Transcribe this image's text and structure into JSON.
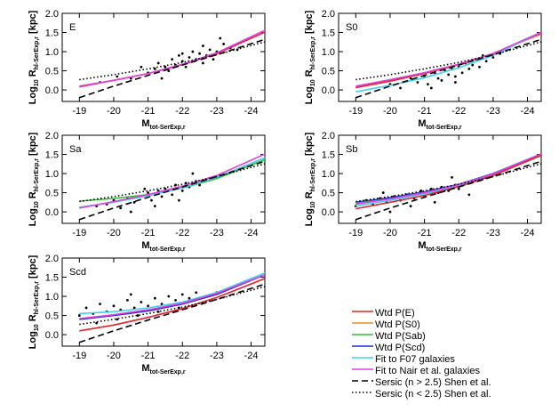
{
  "chart_data": [
    {
      "type": "scatter",
      "label": "E",
      "xlabel": [
        "M",
        "tot-SerExp,r"
      ],
      "ylabel": [
        "Log",
        "10",
        " R",
        "hl-SerExp,r",
        " [kpc]"
      ],
      "xlim": [
        -18.5,
        -24.4
      ],
      "ylim": [
        -0.3,
        2.0
      ],
      "xticks": [
        -19,
        -20,
        -21,
        -22,
        -23,
        -24
      ],
      "yticks": [
        {
          "value": 0,
          "label": "0.0"
        },
        {
          "value": 0.5,
          "label": "0.5"
        },
        {
          "value": 1,
          "label": "1.0"
        },
        {
          "value": 1.5,
          "label": "1.5"
        },
        {
          "value": 2,
          "label": "2.0"
        }
      ],
      "points": {
        "x": [
          -20.1,
          -20.5,
          -20.8,
          -21.0,
          -21.2,
          -21.3,
          -21.5,
          -21.6,
          -21.7,
          -21.8,
          -21.9,
          -22.0,
          -22.1,
          -22.2,
          -22.3,
          -22.4,
          -22.5,
          -22.6,
          -22.7,
          -22.8,
          -22.9,
          -23.0,
          -23.2,
          -23.4,
          -23.6,
          -19.6,
          -21.4,
          -22.0,
          -22.6,
          -23.1
        ],
        "y": [
          0.35,
          0.3,
          0.6,
          0.45,
          0.55,
          0.7,
          0.6,
          0.5,
          0.8,
          0.65,
          0.9,
          0.75,
          0.6,
          0.85,
          1.0,
          0.8,
          0.95,
          1.15,
          0.9,
          1.05,
          0.8,
          1.0,
          1.2,
          1.1,
          1.05,
          0.2,
          0.3,
          0.95,
          0.7,
          1.35
        ]
      },
      "x": [
        -19,
        -20,
        -21,
        -22,
        -23,
        -24.5
      ],
      "series": [
        {
          "color": "#e8202a",
          "dash": "solid",
          "values": [
            0.08,
            0.25,
            0.43,
            0.66,
            0.95,
            1.55
          ]
        },
        {
          "color": "#e040e0",
          "dash": "solid",
          "values": [
            0.1,
            0.25,
            0.43,
            0.67,
            0.97,
            1.6
          ]
        },
        {
          "color": "#000000",
          "dash": "dashed",
          "values": [
            -0.2,
            0.1,
            0.38,
            0.65,
            0.92,
            1.35
          ]
        },
        {
          "color": "#000000",
          "dash": "dotted",
          "values": [
            0.27,
            0.4,
            0.55,
            0.72,
            0.92,
            1.28
          ]
        }
      ]
    },
    {
      "type": "scatter",
      "label": "S0",
      "xlabel": [
        "M",
        "tot-SerExp,r"
      ],
      "ylabel": [
        "Log",
        "10",
        " R",
        "hl-SerExp,r",
        " [kpc]"
      ],
      "xlim": [
        -18.5,
        -24.4
      ],
      "ylim": [
        -0.3,
        2.0
      ],
      "xticks": [
        -19,
        -20,
        -21,
        -22,
        -23,
        -24
      ],
      "yticks": [
        {
          "value": 0,
          "label": "0.0"
        },
        {
          "value": 0.5,
          "label": "0.5"
        },
        {
          "value": 1,
          "label": "1.0"
        },
        {
          "value": 1.5,
          "label": "1.5"
        },
        {
          "value": 2,
          "label": "2.0"
        }
      ],
      "points": {
        "x": [
          -20.0,
          -20.3,
          -20.6,
          -20.8,
          -21.0,
          -21.1,
          -21.3,
          -21.4,
          -21.5,
          -21.6,
          -21.7,
          -21.8,
          -21.9,
          -22.0,
          -22.1,
          -22.2,
          -22.3,
          -22.4,
          -22.5,
          -22.6,
          -22.8,
          -23.0,
          -23.2,
          -21.2,
          -21.9,
          -22.7
        ],
        "y": [
          0.15,
          0.05,
          0.3,
          0.2,
          0.35,
          0.15,
          0.45,
          0.3,
          0.25,
          0.5,
          0.4,
          0.55,
          0.35,
          0.6,
          0.45,
          0.7,
          0.55,
          0.65,
          0.8,
          0.6,
          0.75,
          0.85,
          0.95,
          0.05,
          0.2,
          0.9
        ]
      },
      "x": [
        -19,
        -20,
        -21,
        -22,
        -23,
        -24.5
      ],
      "series": [
        {
          "color": "#f08a1c",
          "dash": "solid",
          "values": [
            0.08,
            0.25,
            0.45,
            0.67,
            0.95,
            1.5
          ]
        },
        {
          "color": "#e8202a",
          "dash": "solid",
          "values": [
            0.06,
            0.23,
            0.43,
            0.66,
            0.95,
            1.52
          ]
        },
        {
          "color": "#3fd0f0",
          "dash": "solid",
          "values": [
            -0.05,
            0.12,
            0.32,
            0.58,
            0.9,
            1.55
          ]
        },
        {
          "color": "#e040e0",
          "dash": "solid",
          "values": [
            0.1,
            0.27,
            0.45,
            0.67,
            0.95,
            1.55
          ]
        },
        {
          "color": "#000000",
          "dash": "dashed",
          "values": [
            -0.2,
            0.1,
            0.38,
            0.65,
            0.92,
            1.35
          ]
        },
        {
          "color": "#000000",
          "dash": "dotted",
          "values": [
            0.27,
            0.4,
            0.55,
            0.72,
            0.92,
            1.28
          ]
        }
      ]
    },
    {
      "type": "scatter",
      "label": "Sa",
      "xlabel": [
        "M",
        "tot-SerExp,r"
      ],
      "ylabel": [
        "Log",
        "10",
        " R",
        "hl-SerExp,r",
        " [kpc]"
      ],
      "xlim": [
        -18.5,
        -24.4
      ],
      "ylim": [
        -0.3,
        2.0
      ],
      "xticks": [
        -19,
        -20,
        -21,
        -22,
        -23,
        -24
      ],
      "yticks": [
        {
          "value": 0,
          "label": "0.0"
        },
        {
          "value": 0.5,
          "label": "0.5"
        },
        {
          "value": 1,
          "label": "1.0"
        },
        {
          "value": 1.5,
          "label": "1.5"
        },
        {
          "value": 2,
          "label": "2.0"
        }
      ],
      "points": {
        "x": [
          -19.5,
          -19.8,
          -20.0,
          -20.2,
          -20.4,
          -20.6,
          -20.8,
          -21.0,
          -21.1,
          -21.3,
          -21.4,
          -21.5,
          -21.7,
          -21.8,
          -22.0,
          -22.1,
          -22.2,
          -22.4,
          -22.5,
          -22.7,
          -22.9,
          -20.5,
          -21.2,
          -21.9,
          -22.3,
          -20.9
        ],
        "y": [
          0.15,
          0.2,
          0.3,
          0.1,
          0.35,
          0.25,
          0.4,
          0.5,
          0.3,
          0.55,
          0.4,
          0.6,
          0.45,
          0.7,
          0.55,
          0.75,
          0.65,
          0.8,
          0.7,
          0.85,
          0.9,
          0.0,
          0.15,
          0.3,
          1.0,
          0.6
        ]
      },
      "x": [
        -19,
        -20,
        -21,
        -22,
        -23,
        -24.5
      ],
      "series": [
        {
          "color": "#2ec02e",
          "dash": "solid",
          "values": [
            0.28,
            0.35,
            0.45,
            0.62,
            0.87,
            1.4
          ]
        },
        {
          "color": "#3fd0f0",
          "dash": "solid",
          "values": [
            0.12,
            0.25,
            0.42,
            0.63,
            0.9,
            1.45
          ]
        },
        {
          "color": "#e040e0",
          "dash": "solid",
          "values": [
            0.1,
            0.27,
            0.45,
            0.67,
            0.95,
            1.55
          ]
        },
        {
          "color": "#000000",
          "dash": "dashed",
          "values": [
            -0.2,
            0.1,
            0.38,
            0.65,
            0.92,
            1.35
          ]
        },
        {
          "color": "#000000",
          "dash": "dotted",
          "values": [
            0.27,
            0.4,
            0.55,
            0.72,
            0.92,
            1.28
          ]
        }
      ]
    },
    {
      "type": "scatter",
      "label": "Sb",
      "xlabel": [
        "M",
        "tot-SerExp,r"
      ],
      "ylabel": [
        "Log",
        "10",
        " R",
        "hl-SerExp,r",
        " [kpc]"
      ],
      "xlim": [
        -18.5,
        -24.4
      ],
      "ylim": [
        -0.3,
        2.0
      ],
      "xticks": [
        -19,
        -20,
        -21,
        -22,
        -23,
        -24
      ],
      "yticks": [
        {
          "value": 0,
          "label": "0.0"
        },
        {
          "value": 0.5,
          "label": "0.5"
        },
        {
          "value": 1,
          "label": "1.0"
        },
        {
          "value": 1.5,
          "label": "1.5"
        },
        {
          "value": 2,
          "label": "2.0"
        }
      ],
      "points": {
        "x": [
          -19.0,
          -19.3,
          -19.5,
          -19.7,
          -19.9,
          -20.1,
          -20.3,
          -20.5,
          -20.7,
          -20.9,
          -21.0,
          -21.2,
          -21.4,
          -21.5,
          -21.7,
          -21.9,
          -22.0,
          -22.2,
          -22.4,
          -22.6,
          -20.0,
          -20.6,
          -21.3,
          -21.8,
          -22.3,
          -19.8
        ],
        "y": [
          0.15,
          0.3,
          0.2,
          0.35,
          0.25,
          0.4,
          0.3,
          0.45,
          0.35,
          0.55,
          0.4,
          0.6,
          0.5,
          0.65,
          0.55,
          0.7,
          0.6,
          0.75,
          0.8,
          0.85,
          0.0,
          0.15,
          0.25,
          0.9,
          0.45,
          0.5
        ]
      },
      "x": [
        -19,
        -20,
        -21,
        -22,
        -23,
        -24.5
      ],
      "series": [
        {
          "color": "#1a2ee0",
          "dash": "solid",
          "values": [
            0.25,
            0.37,
            0.52,
            0.72,
            1.0,
            1.55
          ]
        },
        {
          "color": "#2ec02e",
          "dash": "solid",
          "values": [
            0.22,
            0.34,
            0.5,
            0.7,
            0.97,
            1.5
          ]
        },
        {
          "color": "#3fd0f0",
          "dash": "solid",
          "values": [
            0.15,
            0.3,
            0.47,
            0.68,
            0.96,
            1.52
          ]
        },
        {
          "color": "#e040e0",
          "dash": "solid",
          "values": [
            0.2,
            0.34,
            0.5,
            0.71,
            0.99,
            1.55
          ]
        },
        {
          "color": "#e8202a",
          "dash": "solid",
          "values": [
            0.08,
            0.25,
            0.43,
            0.66,
            0.95,
            1.52
          ]
        },
        {
          "color": "#000000",
          "dash": "dashed",
          "values": [
            -0.2,
            0.1,
            0.38,
            0.65,
            0.92,
            1.35
          ]
        },
        {
          "color": "#000000",
          "dash": "dotted",
          "values": [
            0.27,
            0.4,
            0.55,
            0.72,
            0.92,
            1.28
          ]
        }
      ]
    },
    {
      "type": "scatter",
      "label": "Scd",
      "xlabel": [
        "M",
        "tot-SerExp,r"
      ],
      "ylabel": [
        "Log",
        "10",
        " R",
        "hl-SerExp,r",
        " [kpc]"
      ],
      "xlim": [
        -18.5,
        -24.4
      ],
      "ylim": [
        -0.3,
        2.0
      ],
      "xticks": [
        -19,
        -20,
        -21,
        -22,
        -23,
        -24
      ],
      "yticks": [
        {
          "value": 0,
          "label": "0.0"
        },
        {
          "value": 0.5,
          "label": "0.5"
        },
        {
          "value": 1,
          "label": "1.0"
        },
        {
          "value": 1.5,
          "label": "1.5"
        },
        {
          "value": 2,
          "label": "2.0"
        }
      ],
      "points": {
        "x": [
          -19.0,
          -19.2,
          -19.4,
          -19.6,
          -19.8,
          -20.0,
          -20.2,
          -20.4,
          -20.6,
          -20.8,
          -21.0,
          -21.2,
          -21.4,
          -21.6,
          -21.8,
          -22.0,
          -22.2,
          -22.4,
          -22.7,
          -23.0,
          -19.5,
          -20.1,
          -20.7,
          -21.3,
          -21.9,
          -20.5
        ],
        "y": [
          0.5,
          0.7,
          0.55,
          0.8,
          0.6,
          0.75,
          0.65,
          0.9,
          0.7,
          0.85,
          0.75,
          0.95,
          0.8,
          1.0,
          0.9,
          1.05,
          0.95,
          1.1,
          1.0,
          1.1,
          0.3,
          0.4,
          0.5,
          0.6,
          0.7,
          1.05
        ]
      },
      "x": [
        -19,
        -20,
        -21,
        -22,
        -23,
        -24.5
      ],
      "series": [
        {
          "color": "#1a2ee0",
          "dash": "solid",
          "values": [
            0.4,
            0.5,
            0.62,
            0.8,
            1.05,
            1.6
          ]
        },
        {
          "color": "#3fd0f0",
          "dash": "solid",
          "values": [
            0.55,
            0.6,
            0.7,
            0.85,
            1.1,
            1.65
          ]
        },
        {
          "color": "#e040e0",
          "dash": "solid",
          "values": [
            0.42,
            0.52,
            0.65,
            0.82,
            1.08,
            1.6
          ]
        },
        {
          "color": "#e8202a",
          "dash": "solid",
          "values": [
            0.1,
            0.25,
            0.45,
            0.68,
            0.97,
            1.5
          ]
        },
        {
          "color": "#000000",
          "dash": "dashed",
          "values": [
            -0.2,
            0.1,
            0.38,
            0.65,
            0.92,
            1.35
          ]
        },
        {
          "color": "#000000",
          "dash": "dotted",
          "values": [
            0.27,
            0.4,
            0.55,
            0.72,
            0.92,
            1.28
          ]
        }
      ]
    }
  ],
  "legend": [
    {
      "name": "Wtd P(E)",
      "color": "#e8202a",
      "dash": "solid"
    },
    {
      "name": "Wtd P(S0)",
      "color": "#f08a1c",
      "dash": "solid"
    },
    {
      "name": "Wtd P(Sab)",
      "color": "#2ec02e",
      "dash": "solid"
    },
    {
      "name": "Wtd P(Scd)",
      "color": "#1a2ee0",
      "dash": "solid"
    },
    {
      "name": "Fit to F07 galaxies",
      "color": "#3fd0f0",
      "dash": "solid"
    },
    {
      "name": "Fit to Nair et al. galaxies",
      "color": "#e040e0",
      "dash": "solid"
    },
    {
      "name": "Sersic (n > 2.5) Shen et al.",
      "color": "#000000",
      "dash": "dashed"
    },
    {
      "name": "Sersic (n < 2.5) Shen et al.",
      "color": "#000000",
      "dash": "dotted"
    }
  ]
}
